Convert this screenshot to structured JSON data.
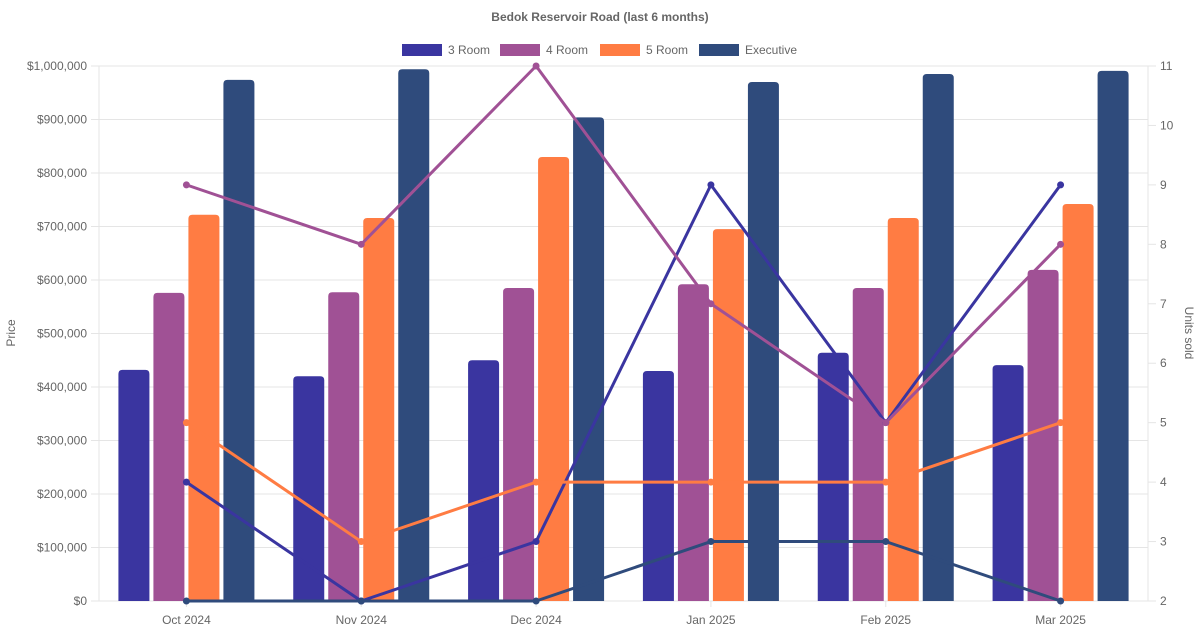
{
  "chart_data": {
    "type": "bar",
    "title": "Bedok Reservoir Road (last 6 months)",
    "categories": [
      "Oct 2024",
      "Nov 2024",
      "Dec 2024",
      "Jan 2025",
      "Feb 2025",
      "Mar 2025"
    ],
    "xlabel": "",
    "ylabel": "Price",
    "y2label": "Units sold",
    "ylim": [
      0,
      1000000
    ],
    "y2lim": [
      2,
      11
    ],
    "yticks": [
      "$0",
      "$100,000",
      "$200,000",
      "$300,000",
      "$400,000",
      "$500,000",
      "$600,000",
      "$700,000",
      "$800,000",
      "$900,000",
      "$1,000,000"
    ],
    "y2ticks": [
      "2",
      "3",
      "4",
      "5",
      "6",
      "7",
      "8",
      "9",
      "10",
      "11"
    ],
    "grid": true,
    "legend_position": "top",
    "series": [
      {
        "name": "3 Room",
        "color": "#3a35a0",
        "kind": "bar",
        "axis": "price",
        "values": [
          432000,
          420000,
          450000,
          430000,
          464000,
          441000
        ]
      },
      {
        "name": "4 Room",
        "color": "#a05195",
        "kind": "bar",
        "axis": "price",
        "values": [
          576000,
          577000,
          585000,
          592000,
          585000,
          619000
        ]
      },
      {
        "name": "5 Room",
        "color": "#ff7c43",
        "kind": "bar",
        "axis": "price",
        "values": [
          722000,
          716000,
          830000,
          695000,
          716000,
          742000
        ]
      },
      {
        "name": "Executive",
        "color": "#2f4b7c",
        "kind": "bar",
        "axis": "price",
        "values": [
          974000,
          994000,
          904000,
          970000,
          985000,
          991000
        ]
      }
    ],
    "line_series": [
      {
        "name": "3 Room",
        "color": "#3a35a0",
        "kind": "line",
        "axis": "units",
        "values": [
          4,
          2,
          3,
          9,
          5,
          9
        ]
      },
      {
        "name": "4 Room",
        "color": "#a05195",
        "kind": "line",
        "axis": "units",
        "values": [
          9,
          8,
          11,
          7,
          5,
          8
        ]
      },
      {
        "name": "5 Room",
        "color": "#ff7c43",
        "kind": "line",
        "axis": "units",
        "values": [
          5,
          3,
          4,
          4,
          4,
          5
        ]
      },
      {
        "name": "Executive",
        "color": "#2f4b7c",
        "kind": "line",
        "axis": "units",
        "values": [
          2,
          2,
          2,
          3,
          3,
          2
        ]
      }
    ]
  }
}
